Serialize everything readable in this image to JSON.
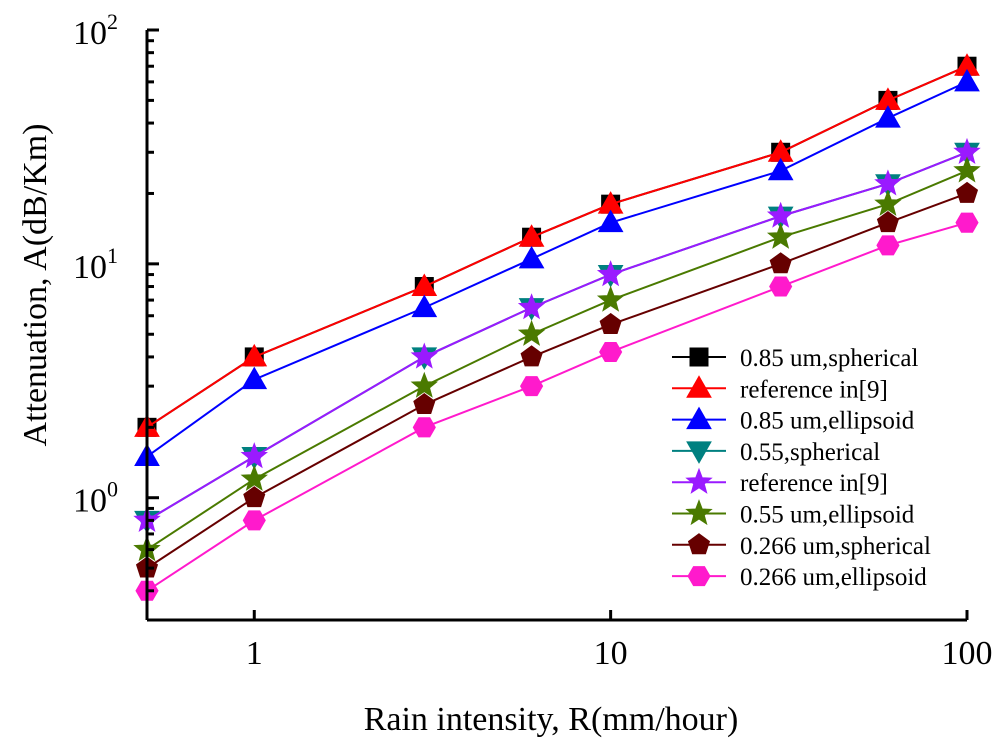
{
  "chart_data": {
    "type": "line",
    "title": "",
    "xlabel": "Rain intensity, R(mm/hour)",
    "ylabel": "Attenuation, A(dB/Km)",
    "xscale": "log",
    "yscale": "log",
    "xlim": [
      0.5,
      100
    ],
    "ylim": [
      0.3,
      100
    ],
    "xticks": [
      {
        "value": 1,
        "label": "1"
      },
      {
        "value": 10,
        "label": "10"
      },
      {
        "value": 100,
        "label": "100"
      }
    ],
    "yticks": [
      {
        "value": 1,
        "base": "10",
        "exp": "0"
      },
      {
        "value": 10,
        "base": "10",
        "exp": "1"
      },
      {
        "value": 100,
        "base": "10",
        "exp": "2"
      }
    ],
    "grid": false,
    "legend_position": "bottom-right",
    "x": [
      0.5,
      1,
      3,
      6,
      10,
      30,
      60,
      100
    ],
    "series": [
      {
        "name": "0.85 um,spherical",
        "color": "#000000",
        "marker": "square",
        "values": [
          2.0,
          4.0,
          8.0,
          13.0,
          18.0,
          30.0,
          50.0,
          70.0
        ]
      },
      {
        "name": "reference in[9]",
        "color": "#ff0000",
        "marker": "triangle-up",
        "values": [
          2.0,
          4.0,
          8.0,
          13.0,
          18.0,
          30.0,
          50.0,
          70.0
        ]
      },
      {
        "name": "0.85 um,ellipsoid",
        "color": "#0000ff",
        "marker": "triangle-up",
        "values": [
          1.5,
          3.2,
          6.5,
          10.5,
          15.0,
          25.0,
          42.0,
          60.0
        ]
      },
      {
        "name": "0.55,spherical",
        "color": "#008080",
        "marker": "triangle-down",
        "values": [
          0.8,
          1.5,
          4.0,
          6.5,
          9.0,
          16.0,
          22.0,
          30.0
        ]
      },
      {
        "name": "reference in[9]",
        "color": "#9a1aff",
        "marker": "star",
        "values": [
          0.8,
          1.5,
          4.0,
          6.5,
          9.0,
          16.0,
          22.0,
          30.0
        ]
      },
      {
        "name": "0.55 um,ellipsoid",
        "color": "#4a7a00",
        "marker": "star",
        "values": [
          0.6,
          1.2,
          3.0,
          5.0,
          7.0,
          13.0,
          18.0,
          25.0
        ]
      },
      {
        "name": "0.266 um,spherical",
        "color": "#660000",
        "marker": "pentagon",
        "values": [
          0.5,
          1.0,
          2.5,
          4.0,
          5.5,
          10.0,
          15.0,
          20.0
        ]
      },
      {
        "name": "0.266 um,ellipsoid",
        "color": "#ff1acc",
        "marker": "hexagon",
        "values": [
          0.4,
          0.8,
          2.0,
          3.0,
          4.2,
          8.0,
          12.0,
          15.0
        ]
      }
    ]
  }
}
